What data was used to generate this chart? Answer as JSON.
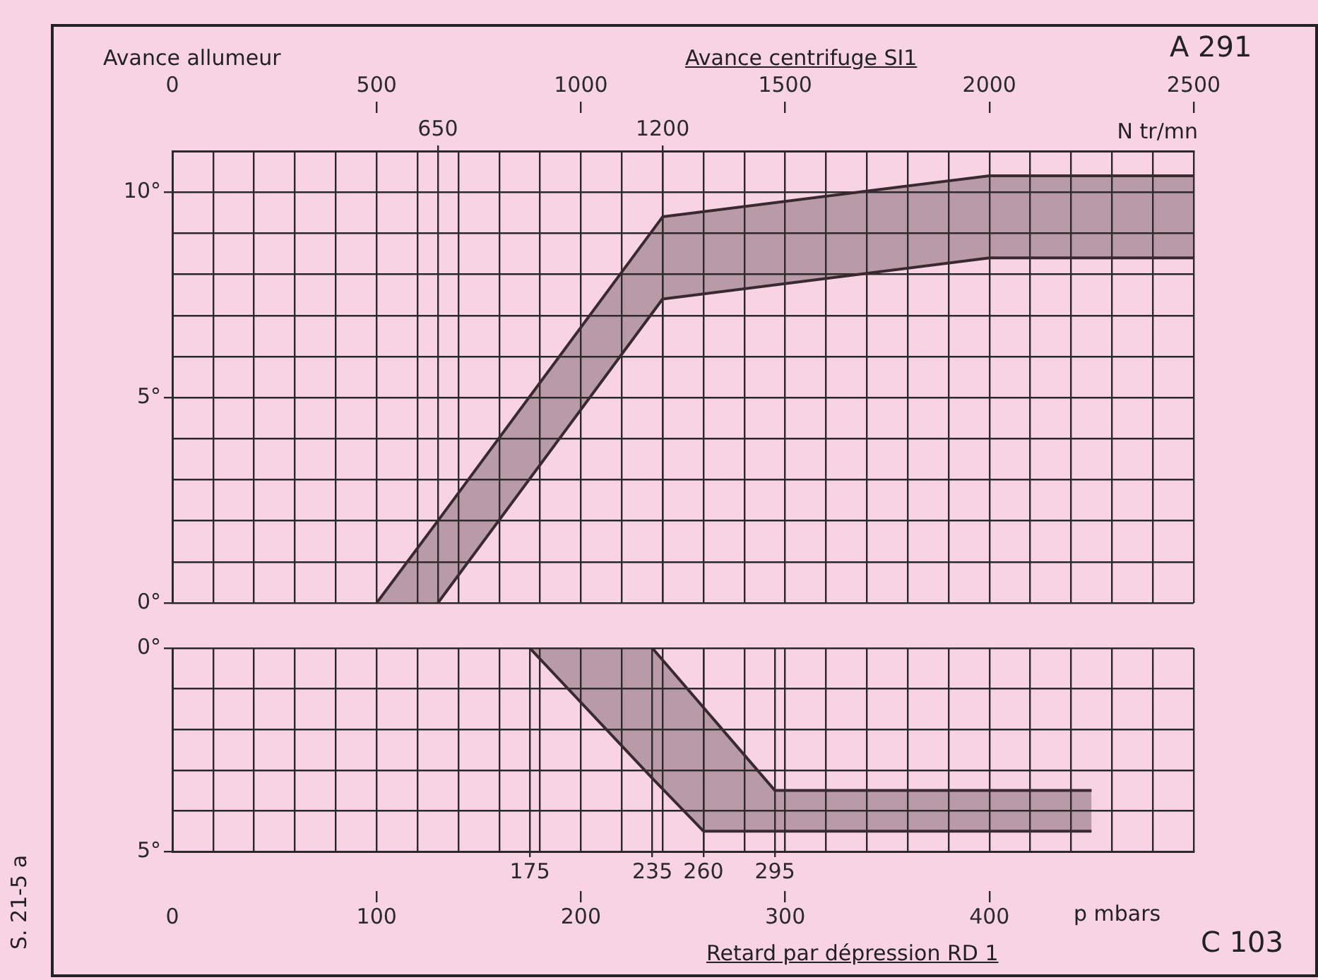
{
  "chart_data": [
    {
      "type": "line",
      "title": "Avance centrifuge SI1",
      "ylabel": "Avance allumeur",
      "xlabel": "N tr/mn",
      "annotations": [
        "A 291"
      ],
      "series": [
        {
          "color": "#3a2a30",
          "x": [
            500,
            650,
            1200,
            2000,
            2500
          ],
          "values": [
            0,
            2.0,
            9.4,
            10.4,
            10.4
          ],
          "lower": [
            0,
            0,
            7.4,
            8.4,
            8.4
          ],
          "upper": [
            0,
            2.0,
            9.4,
            10.4,
            10.4
          ]
        },
        {
          "color": "#3a2a30",
          "x": [
            650,
            1200,
            2000,
            2500
          ],
          "values": [
            0,
            7.4,
            8.4,
            8.4
          ]
        }
      ],
      "xlim": [
        0,
        2500
      ],
      "xticks": [
        0,
        {
          "value": 100,
          "label": null
        },
        {
          "value": 200,
          "label": null
        },
        {
          "value": 300,
          "label": null
        },
        {
          "value": 400,
          "label": null
        },
        500,
        {
          "value": 600,
          "label": null
        },
        {
          "value": 700,
          "label": null
        },
        {
          "value": 800,
          "label": null
        },
        {
          "value": 900,
          "label": null
        },
        1000,
        {
          "value": 1100,
          "label": null
        },
        {
          "value": 1200,
          "label": null
        },
        {
          "value": 1300,
          "label": null
        },
        {
          "value": 1400,
          "label": null
        },
        1500,
        {
          "value": 1600,
          "label": null
        },
        {
          "value": 1700,
          "label": null
        },
        {
          "value": 1800,
          "label": null
        },
        {
          "value": 1900,
          "label": null
        },
        2000,
        {
          "value": 2100,
          "label": null
        },
        {
          "value": 2200,
          "label": null
        },
        {
          "value": 2300,
          "label": null
        },
        {
          "value": 2400,
          "label": null
        },
        2500
      ],
      "x2lim": [
        0,
        2500
      ],
      "x2ticks": [
        650,
        1200
      ],
      "ylim": [
        0,
        11
      ],
      "yticks": [
        {
          "value": 0,
          "label": "0°"
        },
        {
          "value": 1,
          "label": null
        },
        {
          "value": 2,
          "label": null
        },
        {
          "value": 3,
          "label": null
        },
        {
          "value": 4,
          "label": null
        },
        {
          "value": 5,
          "label": "5°"
        },
        {
          "value": 6,
          "label": null
        },
        {
          "value": 7,
          "label": null
        },
        {
          "value": 8,
          "label": null
        },
        {
          "value": 9,
          "label": null
        },
        {
          "value": 10,
          "label": "10°"
        },
        {
          "value": 11,
          "label": null
        }
      ],
      "grid": true,
      "legend": false,
      "marker": "none",
      "line_style": "solid"
    },
    {
      "type": "line",
      "title": "Retard par dépression RD 1",
      "xlabel": "p mbars",
      "annotations": [
        "C 103",
        "S. 21-5 a"
      ],
      "series": [
        {
          "color": "#3a2a30",
          "x": [
            175,
            235,
            260,
            295,
            450
          ],
          "values": [
            0,
            3.2,
            4.5,
            4.5,
            4.5
          ],
          "lower": [
            0,
            0,
            1.5,
            3.5,
            3.5
          ],
          "upper": [
            0,
            3.2,
            4.5,
            4.5,
            4.5
          ]
        },
        {
          "color": "#3a2a30",
          "x": [
            235,
            295,
            450
          ],
          "values": [
            0,
            3.5,
            3.5
          ]
        }
      ],
      "xlim": [
        0,
        500
      ],
      "xticks": [
        0,
        {
          "value": 20,
          "label": null
        },
        {
          "value": 40,
          "label": null
        },
        {
          "value": 60,
          "label": null
        },
        {
          "value": 80,
          "label": null
        },
        100,
        {
          "value": 120,
          "label": null
        },
        {
          "value": 140,
          "label": null
        },
        {
          "value": 160,
          "label": null
        },
        {
          "value": 180,
          "label": null
        },
        200,
        {
          "value": 220,
          "label": null
        },
        {
          "value": 240,
          "label": null
        },
        {
          "value": 260,
          "label": null
        },
        {
          "value": 280,
          "label": null
        },
        300,
        {
          "value": 320,
          "label": null
        },
        {
          "value": 340,
          "label": null
        },
        {
          "value": 360,
          "label": null
        },
        {
          "value": 380,
          "label": null
        },
        400,
        {
          "value": 420,
          "label": null
        },
        {
          "value": 440,
          "label": null
        },
        {
          "value": 460,
          "label": null
        },
        {
          "value": 480,
          "label": null
        },
        {
          "value": 500,
          "label": null
        }
      ],
      "x2lim": [
        0,
        500
      ],
      "x2ticks": [
        175,
        235,
        260,
        295
      ],
      "ylim": [
        5,
        0
      ],
      "yticks": [
        {
          "value": 0,
          "label": "0°"
        },
        {
          "value": 1,
          "label": null
        },
        {
          "value": 2,
          "label": null
        },
        {
          "value": 3,
          "label": null
        },
        {
          "value": 4,
          "label": null
        },
        {
          "value": 5,
          "label": "5°"
        }
      ],
      "grid": true,
      "legend": false,
      "marker": "none",
      "line_style": "solid"
    }
  ]
}
